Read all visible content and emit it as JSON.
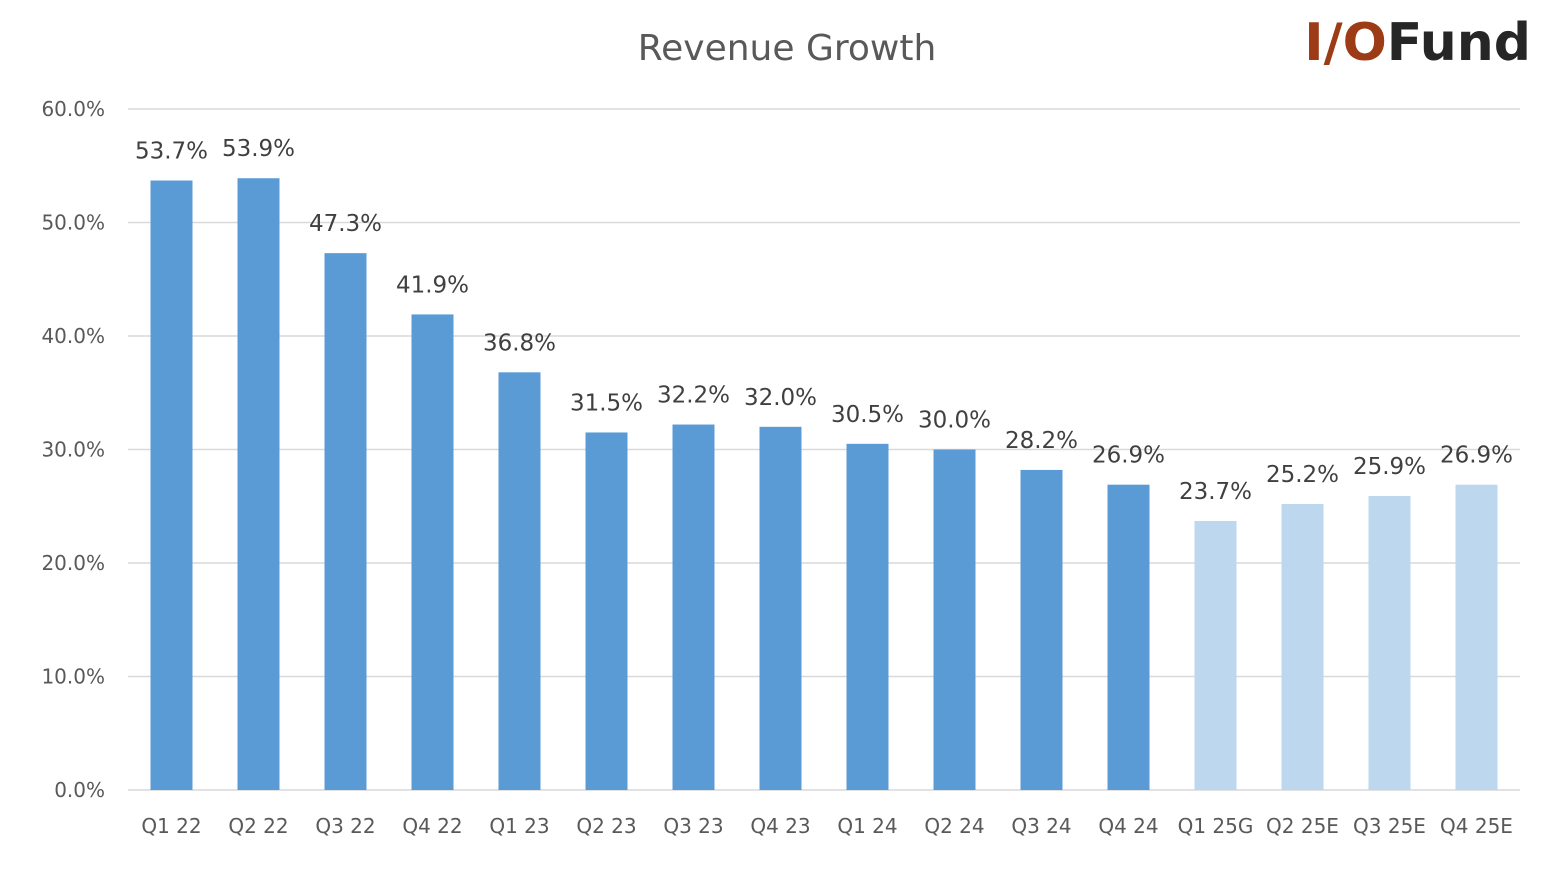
{
  "logo": {
    "part1": "I/O",
    "part2": "Fund",
    "color_part1": "#9c3b16",
    "color_part2": "#262626"
  },
  "colors": {
    "actual": "#5b9bd5",
    "estimate": "#bdd7ee",
    "grid": "#d9d9d9",
    "axis": "#d9d9d9"
  },
  "chart_data": {
    "type": "bar",
    "title": "Revenue Growth",
    "xlabel": "",
    "ylabel": "",
    "ylim": [
      0,
      60
    ],
    "y_tick_values": [
      0,
      10,
      20,
      30,
      40,
      50,
      60
    ],
    "y_tick_labels": [
      "0.0%",
      "10.0%",
      "20.0%",
      "30.0%",
      "40.0%",
      "50.0%",
      "60.0%"
    ],
    "grid": true,
    "legend": "none",
    "categories": [
      "Q1 22",
      "Q2 22",
      "Q3 22",
      "Q4 22",
      "Q1 23",
      "Q2 23",
      "Q3 23",
      "Q4 23",
      "Q1 24",
      "Q2 24",
      "Q3 24",
      "Q4 24",
      "Q1 25G",
      "Q2 25E",
      "Q3 25E",
      "Q4 25E"
    ],
    "values": [
      53.7,
      53.9,
      47.3,
      41.9,
      36.8,
      31.5,
      32.2,
      32.0,
      30.5,
      30.0,
      28.2,
      26.9,
      23.7,
      25.2,
      25.9,
      26.9
    ],
    "data_labels": [
      "53.7%",
      "53.9%",
      "47.3%",
      "41.9%",
      "36.8%",
      "31.5%",
      "32.2%",
      "32.0%",
      "30.5%",
      "30.0%",
      "28.2%",
      "26.9%",
      "23.7%",
      "25.2%",
      "25.9%",
      "26.9%"
    ],
    "is_estimate": [
      false,
      false,
      false,
      false,
      false,
      false,
      false,
      false,
      false,
      false,
      false,
      false,
      true,
      true,
      true,
      true
    ]
  }
}
